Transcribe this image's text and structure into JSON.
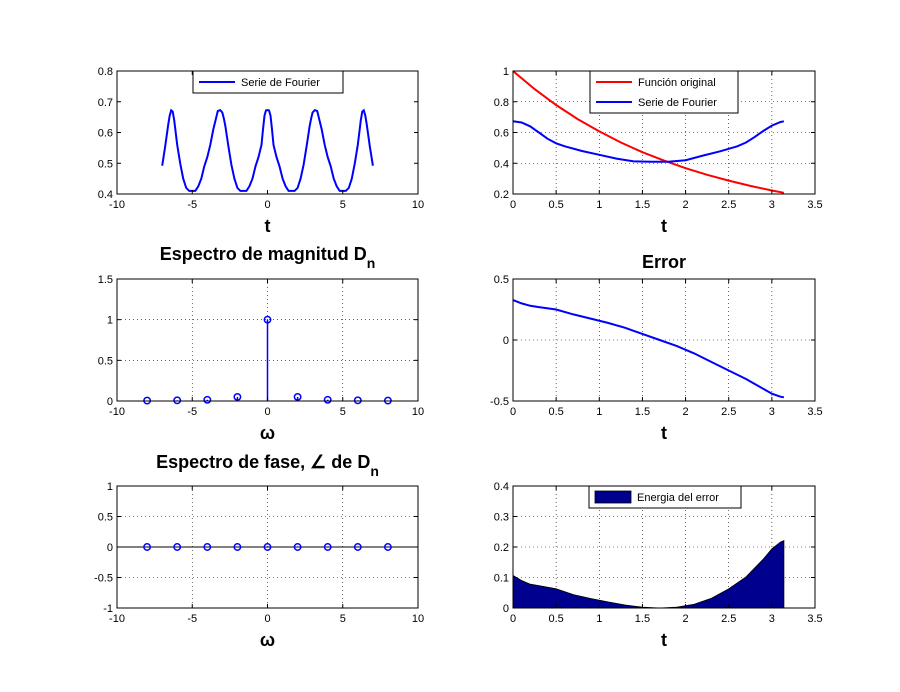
{
  "figure": {
    "background": "#ffffff"
  },
  "chart_data": [
    {
      "id": "p1",
      "type": "line",
      "title": "",
      "xlabel": "t",
      "ylabel": "",
      "xlim": [
        -10,
        10
      ],
      "ylim": [
        0.4,
        0.8
      ],
      "xticks": [
        "-10",
        "-5",
        "0",
        "5",
        "10"
      ],
      "yticks": [
        "0.4",
        "0.5",
        "0.6",
        "0.7",
        "0.8"
      ],
      "grid": false,
      "legend_position": "top-center",
      "series": [
        {
          "name": "Serie de Fourier",
          "color": "#0000ff",
          "x": [
            -7.0,
            -6.8,
            -6.6,
            -6.5,
            -6.4,
            -6.3,
            -6.2,
            -6.1,
            -6.0,
            -5.8,
            -5.6,
            -5.4,
            -5.2,
            -5.0,
            -4.8,
            -4.6,
            -4.4,
            -4.2,
            -4.0,
            -3.8,
            -3.6,
            -3.4,
            -3.3,
            -3.2,
            -3.14,
            -3.0,
            -2.9,
            -2.8,
            -2.6,
            -2.4,
            -2.2,
            -2.0,
            -1.8,
            -1.6,
            -1.4,
            -1.2,
            -1.0,
            -0.8,
            -0.6,
            -0.4,
            -0.3,
            -0.2,
            -0.1,
            0.0,
            0.1,
            0.2,
            0.3,
            0.4,
            0.6,
            0.8,
            1.0,
            1.2,
            1.4,
            1.6,
            1.8,
            2.0,
            2.2,
            2.4,
            2.6,
            2.8,
            2.9,
            3.0,
            3.14,
            3.2,
            3.3,
            3.4,
            3.6,
            3.8,
            4.0,
            4.2,
            4.4,
            4.6,
            4.8,
            5.0,
            5.2,
            5.4,
            5.6,
            5.8,
            6.0,
            6.1,
            6.2,
            6.3,
            6.4,
            6.5,
            6.6,
            6.8,
            7.0
          ],
          "y": [
            0.492,
            0.555,
            0.625,
            0.655,
            0.672,
            0.668,
            0.64,
            0.6,
            0.56,
            0.5,
            0.45,
            0.42,
            0.41,
            0.41,
            0.41,
            0.425,
            0.45,
            0.49,
            0.52,
            0.56,
            0.61,
            0.65,
            0.67,
            0.672,
            0.673,
            0.665,
            0.645,
            0.62,
            0.555,
            0.495,
            0.45,
            0.42,
            0.41,
            0.41,
            0.41,
            0.425,
            0.45,
            0.49,
            0.52,
            0.56,
            0.61,
            0.655,
            0.672,
            0.673,
            0.672,
            0.655,
            0.61,
            0.56,
            0.52,
            0.49,
            0.45,
            0.425,
            0.41,
            0.41,
            0.41,
            0.42,
            0.45,
            0.495,
            0.555,
            0.62,
            0.645,
            0.665,
            0.673,
            0.672,
            0.67,
            0.65,
            0.61,
            0.56,
            0.52,
            0.49,
            0.45,
            0.425,
            0.41,
            0.41,
            0.41,
            0.42,
            0.45,
            0.5,
            0.56,
            0.6,
            0.64,
            0.668,
            0.672,
            0.655,
            0.625,
            0.555,
            0.492
          ]
        }
      ]
    },
    {
      "id": "p2",
      "type": "line",
      "title": "",
      "xlabel": "t",
      "ylabel": "",
      "xlim": [
        0,
        3.5
      ],
      "ylim": [
        0.2,
        1.0
      ],
      "xticks": [
        "0",
        "0.5",
        "1",
        "1.5",
        "2",
        "2.5",
        "3",
        "3.5"
      ],
      "yticks": [
        "0.2",
        "0.4",
        "0.6",
        "0.8",
        "1"
      ],
      "grid": true,
      "legend_position": "top-center",
      "series": [
        {
          "name": "Función original",
          "color": "#ff0000",
          "x": [
            0,
            0.25,
            0.5,
            0.75,
            1.0,
            1.25,
            1.5,
            1.75,
            2.0,
            2.25,
            2.5,
            2.75,
            3.0,
            3.14
          ],
          "y": [
            1.0,
            0.882,
            0.779,
            0.687,
            0.607,
            0.535,
            0.472,
            0.417,
            0.368,
            0.325,
            0.287,
            0.253,
            0.223,
            0.208
          ]
        },
        {
          "name": "Serie de Fourier",
          "color": "#0000ff",
          "x": [
            0,
            0.1,
            0.2,
            0.3,
            0.4,
            0.5,
            0.6,
            0.8,
            1.0,
            1.2,
            1.4,
            1.6,
            1.8,
            2.0,
            2.2,
            2.4,
            2.6,
            2.7,
            2.8,
            2.9,
            3.0,
            3.1,
            3.14
          ],
          "y": [
            0.673,
            0.665,
            0.64,
            0.6,
            0.56,
            0.53,
            0.51,
            0.48,
            0.455,
            0.43,
            0.412,
            0.41,
            0.41,
            0.42,
            0.45,
            0.478,
            0.51,
            0.535,
            0.57,
            0.61,
            0.645,
            0.668,
            0.673
          ]
        }
      ]
    },
    {
      "id": "p3",
      "type": "stem",
      "title": "Espectro de magnitud D",
      "title_subscript": "n",
      "xlabel": "ω",
      "ylabel": "",
      "xlim": [
        -10,
        10
      ],
      "ylim": [
        0,
        1.5
      ],
      "xticks": [
        "-10",
        "-5",
        "0",
        "5",
        "10"
      ],
      "yticks": [
        "0",
        "0.5",
        "1",
        "1.5"
      ],
      "grid": true,
      "series": [
        {
          "name": "",
          "color": "#0000ff",
          "x": [
            -8,
            -6,
            -4,
            -2,
            0,
            2,
            4,
            6,
            8
          ],
          "y": [
            0.005,
            0.008,
            0.015,
            0.05,
            1.0,
            0.05,
            0.015,
            0.008,
            0.005
          ]
        }
      ]
    },
    {
      "id": "p4",
      "type": "line",
      "title": "Error",
      "xlabel": "t",
      "ylabel": "",
      "xlim": [
        0,
        3.5
      ],
      "ylim": [
        -0.5,
        0.5
      ],
      "xticks": [
        "0",
        "0.5",
        "1",
        "1.5",
        "2",
        "2.5",
        "3",
        "3.5"
      ],
      "yticks": [
        "-0.5",
        "0",
        "0.5"
      ],
      "grid": true,
      "series": [
        {
          "name": "",
          "color": "#0000ff",
          "x": [
            0,
            0.1,
            0.2,
            0.3,
            0.5,
            0.7,
            0.9,
            1.1,
            1.3,
            1.5,
            1.7,
            1.9,
            2.1,
            2.3,
            2.5,
            2.7,
            2.9,
            3.0,
            3.1,
            3.14
          ],
          "y": [
            0.327,
            0.3,
            0.28,
            0.27,
            0.25,
            0.21,
            0.175,
            0.14,
            0.1,
            0.05,
            0.0,
            -0.05,
            -0.11,
            -0.18,
            -0.25,
            -0.32,
            -0.4,
            -0.44,
            -0.465,
            -0.47
          ]
        }
      ]
    },
    {
      "id": "p5",
      "type": "stem",
      "title": "Espectro de fase, ∠ de D",
      "title_subscript": "n",
      "xlabel": "ω",
      "ylabel": "",
      "xlim": [
        -10,
        10
      ],
      "ylim": [
        -1,
        1
      ],
      "xticks": [
        "-10",
        "-5",
        "0",
        "5",
        "10"
      ],
      "yticks": [
        "-1",
        "-0.5",
        "0",
        "0.5",
        "1"
      ],
      "grid": true,
      "series": [
        {
          "name": "",
          "color": "#0000ff",
          "x": [
            -8,
            -6,
            -4,
            -2,
            0,
            2,
            4,
            6,
            8
          ],
          "y": [
            0,
            0,
            0,
            0,
            0,
            0,
            0,
            0,
            0
          ]
        }
      ]
    },
    {
      "id": "p6",
      "type": "area",
      "title": "",
      "xlabel": "t",
      "ylabel": "",
      "xlim": [
        0,
        3.5
      ],
      "ylim": [
        0,
        0.4
      ],
      "xticks": [
        "0",
        "0.5",
        "1",
        "1.5",
        "2",
        "2.5",
        "3",
        "3.5"
      ],
      "yticks": [
        "0",
        "0.1",
        "0.2",
        "0.3",
        "0.4"
      ],
      "grid": true,
      "legend_position": "top-center",
      "series": [
        {
          "name": "Energia del error",
          "color": "#00008f",
          "x": [
            0,
            0.1,
            0.2,
            0.3,
            0.5,
            0.7,
            0.9,
            1.1,
            1.3,
            1.5,
            1.7,
            1.9,
            2.1,
            2.3,
            2.5,
            2.7,
            2.9,
            3.0,
            3.1,
            3.14
          ],
          "y": [
            0.107,
            0.09,
            0.078,
            0.073,
            0.063,
            0.044,
            0.031,
            0.02,
            0.01,
            0.0025,
            0.0,
            0.0025,
            0.012,
            0.032,
            0.063,
            0.102,
            0.16,
            0.194,
            0.216,
            0.221
          ]
        }
      ]
    }
  ]
}
